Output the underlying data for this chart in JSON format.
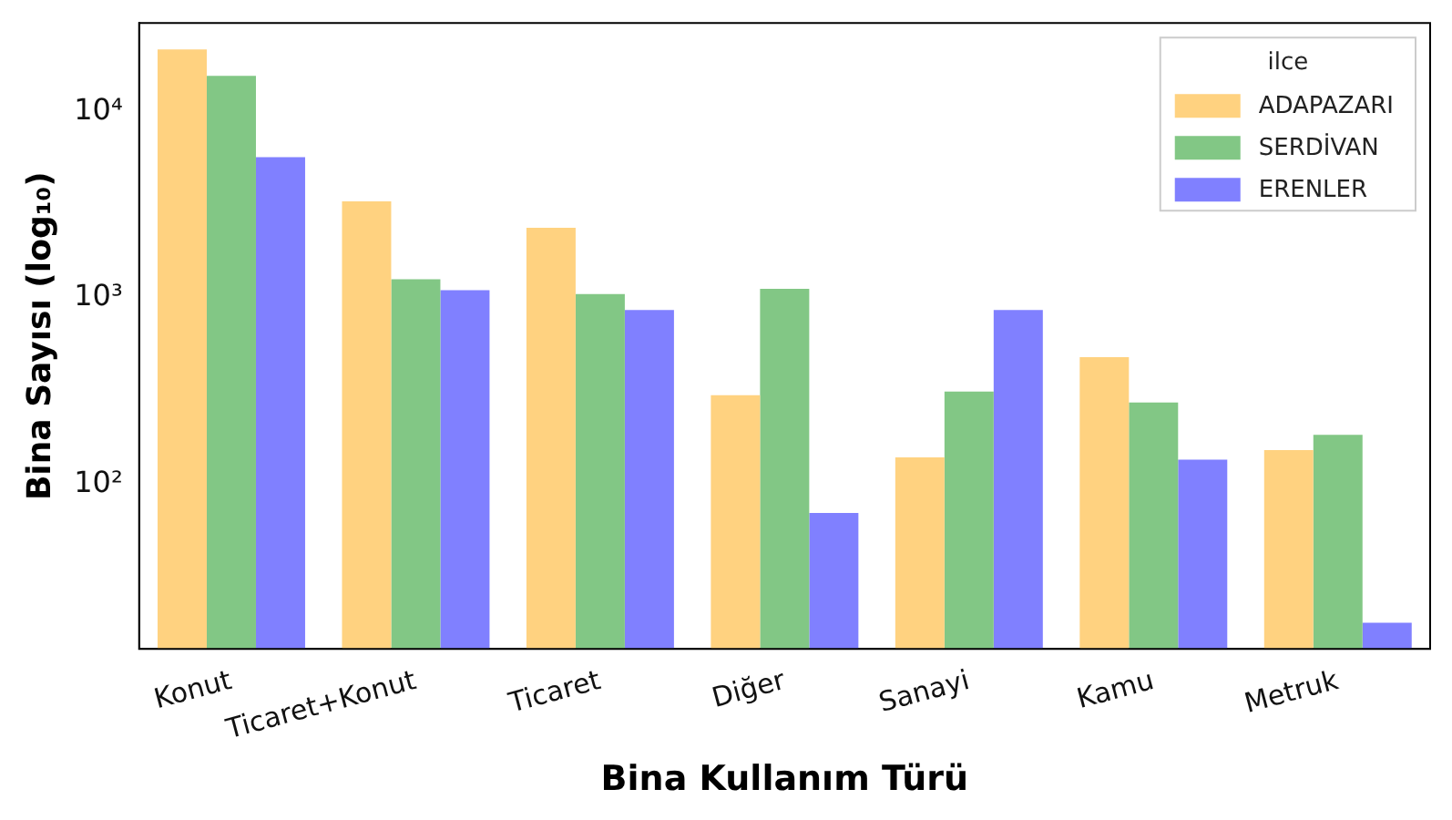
{
  "chart_data": {
    "type": "bar",
    "xlabel": "Bina Kullanım Türü",
    "ylabel": "Bina Sayısı (log₁₀)",
    "legend_title": "ilce",
    "legend": "top right",
    "grid": false,
    "log": true,
    "categories": [
      "Konut",
      "Ticaret+Konut",
      "Ticaret",
      "Diğer",
      "Sanayi",
      "Kamu",
      "Metruk"
    ],
    "series": [
      {
        "name": "ADAPAZARI",
        "color": "#ffd280",
        "values": [
          21600,
          3300,
          2380,
          300,
          139,
          480,
          152
        ]
      },
      {
        "name": "SERDİVAN",
        "color": "#82c785",
        "values": [
          15600,
          1260,
          1050,
          1120,
          314,
          274,
          184
        ]
      },
      {
        "name": "ERENLER",
        "color": "#8080ff",
        "values": [
          5700,
          1100,
          860,
          70,
          860,
          135,
          18
        ]
      }
    ],
    "ylim": [
      13,
      30000
    ],
    "yticks": [
      {
        "value": 100,
        "label": "10²"
      },
      {
        "value": 1000,
        "label": "10³"
      },
      {
        "value": 10000,
        "label": "10⁴"
      }
    ]
  }
}
